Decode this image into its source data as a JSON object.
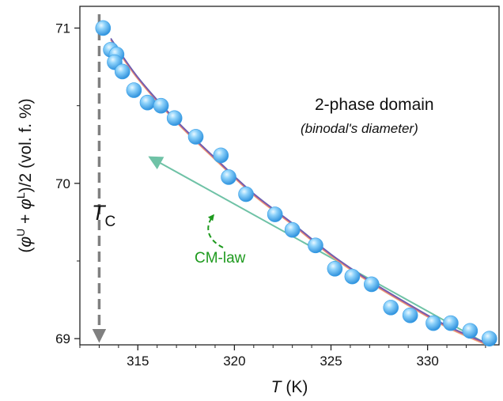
{
  "chart_data": {
    "type": "scatter",
    "xlabel": {
      "var": "T",
      "unit": "(K)"
    },
    "ylabel": {
      "pre": "(",
      "phi1": "φ",
      "sup1": "U",
      "plus": " + ",
      "phi2": "φ",
      "sup2": "L",
      "post": ")/2  (vol. f. %)"
    },
    "xlim": [
      312,
      333.7
    ],
    "ylim": [
      68.96,
      71.14
    ],
    "x_ticks": [
      315,
      320,
      325,
      330
    ],
    "x_tick_labels": [
      "315",
      "320",
      "325",
      "330"
    ],
    "y_ticks": [
      69,
      70,
      71
    ],
    "y_tick_labels": [
      "69",
      "70",
      "71"
    ],
    "grid": false,
    "series": [
      {
        "kind": "points",
        "color": "#4fb3f0",
        "points": [
          {
            "x": 313.2,
            "y": 71.0
          },
          {
            "x": 313.6,
            "y": 70.86
          },
          {
            "x": 313.9,
            "y": 70.83
          },
          {
            "x": 313.8,
            "y": 70.78
          },
          {
            "x": 314.2,
            "y": 70.72
          },
          {
            "x": 314.8,
            "y": 70.6
          },
          {
            "x": 315.5,
            "y": 70.52
          },
          {
            "x": 316.2,
            "y": 70.5
          },
          {
            "x": 316.9,
            "y": 70.42
          },
          {
            "x": 318.0,
            "y": 70.3
          },
          {
            "x": 319.3,
            "y": 70.18
          },
          {
            "x": 319.7,
            "y": 70.04
          },
          {
            "x": 320.6,
            "y": 69.93
          },
          {
            "x": 322.1,
            "y": 69.8
          },
          {
            "x": 323.0,
            "y": 69.7
          },
          {
            "x": 324.2,
            "y": 69.6
          },
          {
            "x": 325.2,
            "y": 69.45
          },
          {
            "x": 326.1,
            "y": 69.4
          },
          {
            "x": 327.1,
            "y": 69.35
          },
          {
            "x": 328.1,
            "y": 69.2
          },
          {
            "x": 329.1,
            "y": 69.15
          },
          {
            "x": 330.3,
            "y": 69.1
          },
          {
            "x": 331.2,
            "y": 69.1
          },
          {
            "x": 332.2,
            "y": 69.05
          },
          {
            "x": 333.2,
            "y": 69.0
          }
        ]
      },
      {
        "kind": "curve",
        "colors": [
          "#f2b07a",
          "#c9628a",
          "#6a5fb0"
        ],
        "points": [
          {
            "x": 313.6,
            "y": 70.93
          },
          {
            "x": 315.0,
            "y": 70.68
          },
          {
            "x": 317.0,
            "y": 70.4
          },
          {
            "x": 319.0,
            "y": 70.16
          },
          {
            "x": 321.0,
            "y": 69.93
          },
          {
            "x": 323.0,
            "y": 69.74
          },
          {
            "x": 325.0,
            "y": 69.54
          },
          {
            "x": 327.0,
            "y": 69.37
          },
          {
            "x": 329.0,
            "y": 69.22
          },
          {
            "x": 331.0,
            "y": 69.08
          },
          {
            "x": 333.0,
            "y": 68.97
          }
        ]
      },
      {
        "kind": "arrow-line",
        "color": "#6fc2a6",
        "from": {
          "x": 333.0,
          "y": 68.97
        },
        "to": {
          "x": 315.6,
          "y": 70.17
        }
      }
    ],
    "tc_line": {
      "x": 313.0,
      "color": "#808080",
      "label_main": "T",
      "label_sub": "C"
    },
    "annotations": {
      "domain_label": "2-phase domain",
      "domain_sublabel": "(binodal's diameter)",
      "cm_label": "CM-law",
      "cm_color": "#1e9a1e"
    }
  }
}
